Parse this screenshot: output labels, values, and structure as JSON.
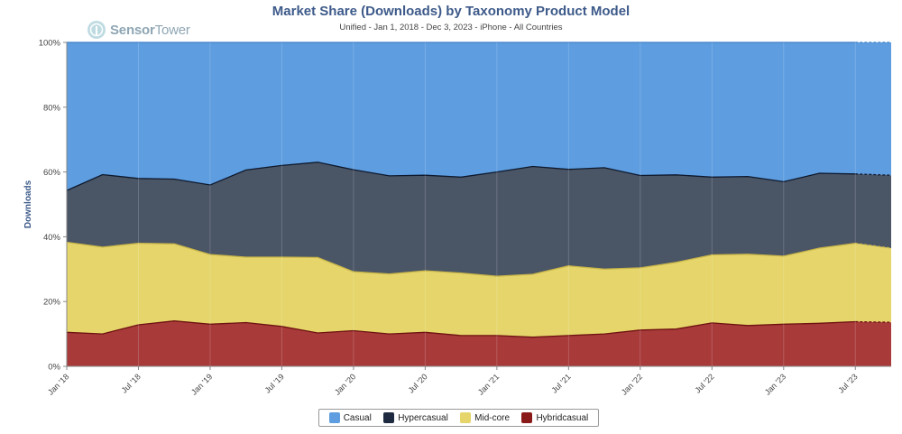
{
  "header": {
    "title": "Market Share (Downloads) by Taxonomy Product Model",
    "subtitle": "Unified - Jan 1, 2018 - Dec 3, 2023 - iPhone - All Countries",
    "logo_text_a": "Sensor",
    "logo_text_b": "Tower"
  },
  "chart_data": {
    "type": "area",
    "stacking": "percent",
    "title": "Market Share (Downloads) by Taxonomy Product Model",
    "subtitle": "Unified - Jan 1, 2018 - Dec 3, 2023 - iPhone - All Countries",
    "ylabel": "Downloads",
    "xlabel": "",
    "ylim": [
      0,
      100
    ],
    "yticks": [
      "0%",
      "20%",
      "40%",
      "60%",
      "80%",
      "100%"
    ],
    "xticks": [
      "Jan '18",
      "Jul '18",
      "Jan '19",
      "Jul '19",
      "Jan '20",
      "Jul '20",
      "Jan '21",
      "Jul '21",
      "Jan '22",
      "Jul '22",
      "Jan '23",
      "Jul '23"
    ],
    "x": [
      "2018-01",
      "2018-04",
      "2018-07",
      "2018-10",
      "2019-01",
      "2019-04",
      "2019-07",
      "2019-10",
      "2020-01",
      "2020-04",
      "2020-07",
      "2020-10",
      "2021-01",
      "2021-04",
      "2021-07",
      "2021-10",
      "2022-01",
      "2022-04",
      "2022-07",
      "2022-10",
      "2023-01",
      "2023-04",
      "2023-07",
      "2023-10"
    ],
    "series": [
      {
        "name": "Hybridcasual",
        "color": "#a83a3a",
        "values": [
          10.5,
          10.0,
          12.8,
          14.0,
          13.0,
          13.5,
          12.3,
          10.3,
          11.0,
          10.0,
          10.5,
          9.5,
          9.5,
          9.0,
          9.5,
          10.0,
          11.2,
          11.5,
          13.4,
          12.6,
          13.0,
          13.3,
          13.8,
          13.6
        ]
      },
      {
        "name": "Mid-core",
        "color": "#e5d56a",
        "values": [
          27.8,
          26.8,
          25.2,
          23.8,
          21.5,
          20.2,
          21.4,
          23.3,
          18.2,
          18.5,
          19.0,
          19.3,
          18.3,
          19.4,
          21.5,
          20.0,
          19.2,
          20.6,
          21.0,
          22.0,
          21.0,
          23.2,
          24.2,
          22.9
        ]
      },
      {
        "name": "Hypercasual",
        "color": "#4a5566",
        "values": [
          16.0,
          22.4,
          20.0,
          20.0,
          21.5,
          26.9,
          28.3,
          29.4,
          31.5,
          30.3,
          29.5,
          29.6,
          32.2,
          33.3,
          29.8,
          31.3,
          28.5,
          27.0,
          24.0,
          24.0,
          23.0,
          23.1,
          21.4,
          22.5
        ]
      },
      {
        "name": "Casual",
        "color": "#5d9de0",
        "values": [
          45.7,
          40.8,
          42.0,
          42.2,
          44.0,
          39.4,
          38.0,
          37.0,
          39.3,
          41.2,
          41.0,
          41.6,
          40.0,
          38.3,
          39.2,
          38.7,
          41.1,
          40.9,
          41.6,
          41.4,
          43.0,
          40.4,
          40.6,
          41.0
        ]
      }
    ],
    "legend": {
      "position": "bottom-center",
      "order": [
        "Casual",
        "Hypercasual",
        "Mid-core",
        "Hybridcasual"
      ]
    },
    "grid": false,
    "last_point_dashed": true
  }
}
